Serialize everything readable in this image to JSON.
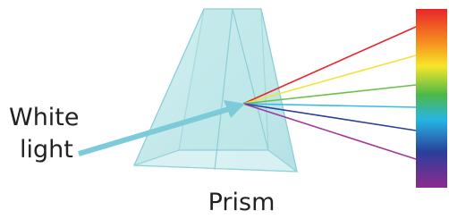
{
  "input_label": {
    "lines": [
      "White",
      "light"
    ]
  },
  "prism_label": "Prism"
}
